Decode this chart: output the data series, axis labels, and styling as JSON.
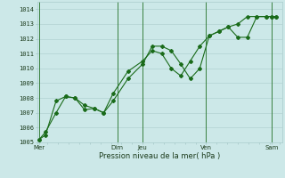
{
  "title": "",
  "xlabel": "Pression niveau de la mer( hPa )",
  "bg_color": "#cce8e8",
  "grid_color": "#aacccc",
  "line_color": "#1a6b1a",
  "ylim": [
    1005,
    1014.5
  ],
  "xlim": [
    0,
    11.6
  ],
  "day_labels": [
    "Mer",
    "Dim",
    "Jeu",
    "Ven",
    "Sam"
  ],
  "day_positions": [
    0.1,
    3.8,
    5.0,
    8.0,
    11.1
  ],
  "vline_positions": [
    0.1,
    3.8,
    5.0,
    8.0,
    11.1
  ],
  "series1_x": [
    0.1,
    0.4,
    0.9,
    1.35,
    1.8,
    2.25,
    2.7,
    3.15,
    3.6,
    4.3,
    5.0,
    5.45,
    5.9,
    6.35,
    6.8,
    7.25,
    7.7,
    8.15,
    8.6,
    9.05,
    9.5,
    9.95,
    10.4,
    10.85,
    11.1,
    11.3
  ],
  "series1_y": [
    1005.2,
    1005.5,
    1007.8,
    1008.1,
    1008.0,
    1007.2,
    1007.3,
    1007.0,
    1007.8,
    1009.3,
    1010.3,
    1011.5,
    1011.5,
    1011.2,
    1010.3,
    1009.3,
    1010.0,
    1012.2,
    1012.5,
    1012.8,
    1013.0,
    1013.5,
    1013.5,
    1013.5,
    1013.5,
    1013.5
  ],
  "series2_x": [
    0.1,
    0.4,
    0.9,
    1.35,
    1.8,
    2.25,
    2.7,
    3.15,
    3.6,
    4.3,
    5.0,
    5.45,
    5.9,
    6.35,
    6.8,
    7.25,
    7.7,
    8.15,
    8.6,
    9.05,
    9.5,
    9.95,
    10.4,
    10.85,
    11.1,
    11.3
  ],
  "series2_y": [
    1005.2,
    1005.7,
    1007.0,
    1008.1,
    1008.0,
    1007.5,
    1007.3,
    1007.0,
    1008.3,
    1009.8,
    1010.5,
    1011.2,
    1011.0,
    1010.0,
    1009.5,
    1010.5,
    1011.5,
    1012.2,
    1012.5,
    1012.8,
    1012.1,
    1012.1,
    1013.5,
    1013.5,
    1013.5,
    1013.5
  ],
  "yticks": [
    1005,
    1006,
    1007,
    1008,
    1009,
    1010,
    1011,
    1012,
    1013,
    1014
  ],
  "xlabel_fontsize": 6.0,
  "tick_fontsize": 5.0
}
